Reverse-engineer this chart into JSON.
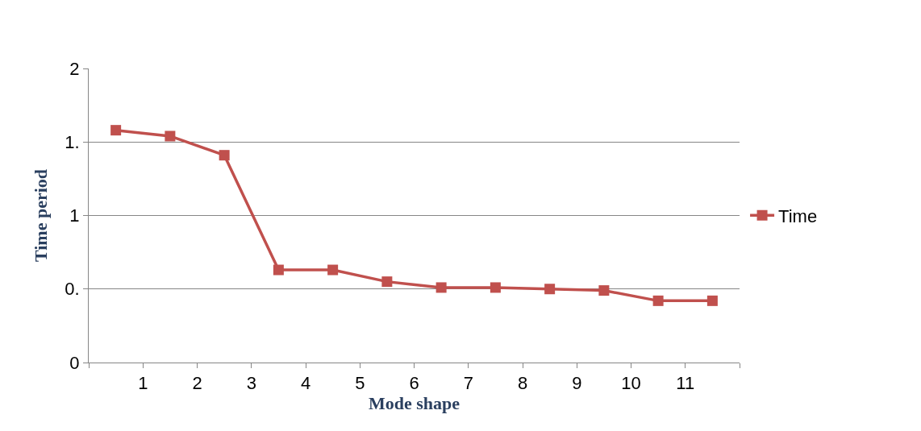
{
  "chart_data": {
    "type": "line",
    "xlabel": "Mode shape",
    "ylabel": "Time period",
    "x": [
      0.5,
      1.5,
      2.5,
      3.5,
      4.5,
      5.5,
      6.5,
      7.5,
      8.5,
      9.5,
      10.5,
      11.5
    ],
    "series": [
      {
        "name": "Time",
        "color": "#c0504d",
        "values": [
          1.58,
          1.54,
          1.41,
          0.63,
          0.63,
          0.55,
          0.51,
          0.51,
          0.5,
          0.49,
          0.42,
          0.42
        ]
      }
    ],
    "xlim": [
      0,
      12
    ],
    "xticks": [
      {
        "value": 0,
        "label": null
      },
      1,
      2,
      3,
      4,
      5,
      6,
      7,
      8,
      9,
      10,
      11,
      {
        "value": 12,
        "label": null
      }
    ],
    "ylim": [
      0,
      2
    ],
    "yticks": [
      0,
      {
        "value": 0.5,
        "label": "0."
      },
      1,
      {
        "value": 1.5,
        "label": "1."
      },
      2
    ],
    "grid": "y",
    "legend": "right",
    "marker": "square",
    "line_style": "solid"
  }
}
